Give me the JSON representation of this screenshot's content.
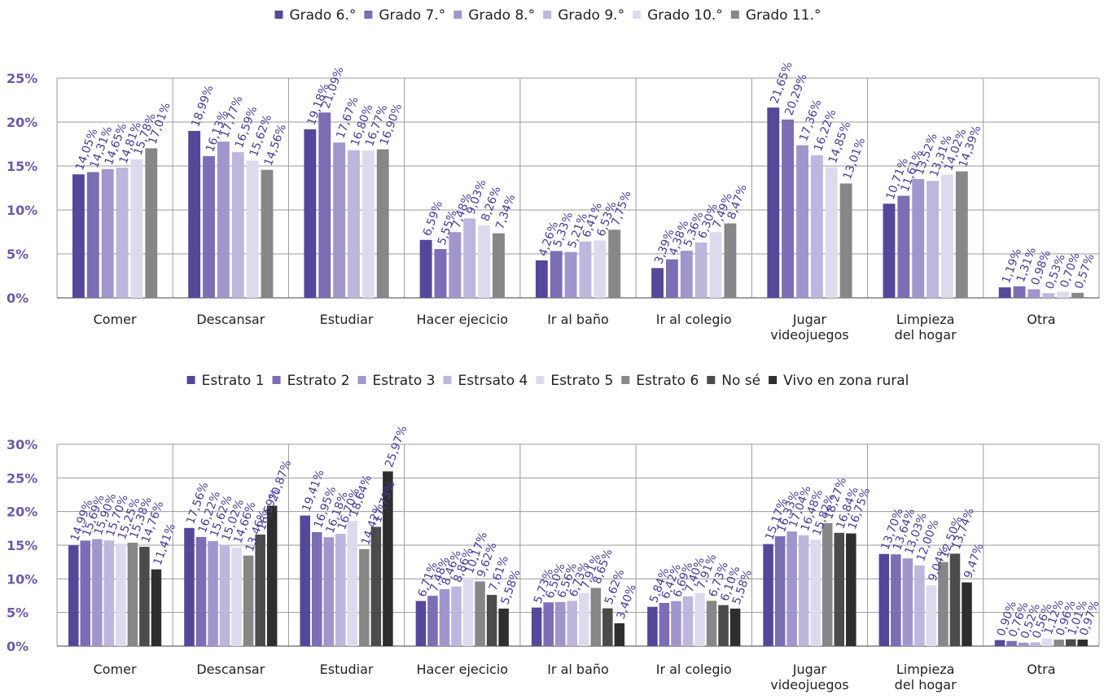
{
  "chart_data": [
    {
      "type": "bar",
      "categories": [
        [
          "Comer"
        ],
        [
          "Descansar"
        ],
        [
          "Estudiar"
        ],
        [
          "Hacer ejecicio"
        ],
        [
          "Ir al baño"
        ],
        [
          "Ir al colegio"
        ],
        [
          "Jugar",
          "videojuegos"
        ],
        [
          "Limpieza",
          "del hogar"
        ],
        [
          "Otra"
        ]
      ],
      "ylim": [
        0,
        25
      ],
      "yticks": [
        0,
        5,
        10,
        15,
        20,
        25
      ],
      "ytick_labels": [
        "0%",
        "5%",
        "10%",
        "15%",
        "20%",
        "25%"
      ],
      "grid": true,
      "legend_position": "top",
      "series": [
        {
          "name": "Grado 6.°",
          "color": "#54489a",
          "values": [
            14.05,
            18.99,
            19.18,
            6.59,
            4.26,
            3.39,
            21.65,
            10.71,
            1.19
          ],
          "labels": [
            "14,05%",
            "18,99%",
            "19,18%",
            "6,59%",
            "4,26%",
            "3,39%",
            "21,65%",
            "10,71%",
            "1,19%"
          ]
        },
        {
          "name": "Grado 7.°",
          "color": "#7c6db4",
          "values": [
            14.31,
            16.13,
            21.09,
            5.55,
            5.33,
            4.38,
            20.29,
            11.61,
            1.31
          ],
          "labels": [
            "14,31%",
            "16,13%",
            "21,09%",
            "5,55%",
            "5,33%",
            "4,38%",
            "20,29%",
            "11,61%",
            "1,31%"
          ]
        },
        {
          "name": "Grado 8.°",
          "color": "#a096cc",
          "values": [
            14.65,
            17.77,
            17.67,
            7.48,
            5.21,
            5.36,
            17.36,
            13.52,
            0.98
          ],
          "labels": [
            "14,65%",
            "17,77%",
            "17,67%",
            "7,48%",
            "5,21%",
            "5,36%",
            "17,36%",
            "13,52%",
            "0,98%"
          ]
        },
        {
          "name": "Grado 9.°",
          "color": "#bdb6dd",
          "values": [
            14.81,
            16.59,
            16.8,
            9.03,
            6.41,
            6.3,
            16.22,
            13.31,
            0.53
          ],
          "labels": [
            "14,81%",
            "16,59%",
            "16,80%",
            "9,03%",
            "6,41%",
            "6,30%",
            "16,22%",
            "13,31%",
            "0,53%"
          ]
        },
        {
          "name": "Grado 10.°",
          "color": "#dedaee",
          "values": [
            15.78,
            15.62,
            16.77,
            8.26,
            6.53,
            7.49,
            14.85,
            14.02,
            0.7
          ],
          "labels": [
            "15,78%",
            "15,62%",
            "16,77%",
            "8,26%",
            "6,53%",
            "7,49%",
            "14,85%",
            "14,02%",
            "0,70%"
          ]
        },
        {
          "name": "Grado 11.°",
          "color": "#878787",
          "values": [
            17.01,
            14.56,
            16.9,
            7.34,
            7.75,
            8.47,
            13.01,
            14.39,
            0.57
          ],
          "labels": [
            "17,01%",
            "14,56%",
            "16,90%",
            "7,34%",
            "7,75%",
            "8,47%",
            "13,01%",
            "14,39%",
            "0,57%"
          ]
        }
      ]
    },
    {
      "type": "bar",
      "categories": [
        [
          "Comer"
        ],
        [
          "Descansar"
        ],
        [
          "Estudiar"
        ],
        [
          "Hacer ejecicio"
        ],
        [
          "Ir al baño"
        ],
        [
          "Ir al colegio"
        ],
        [
          "Jugar",
          "videojuegos"
        ],
        [
          "Limpieza",
          "del hogar"
        ],
        [
          "Otra"
        ]
      ],
      "ylim": [
        0,
        30
      ],
      "yticks": [
        0,
        5,
        10,
        15,
        20,
        25,
        30
      ],
      "ytick_labels": [
        "0%",
        "5%",
        "10%",
        "15%",
        "20%",
        "25%",
        "30%"
      ],
      "grid": true,
      "legend_position": "top",
      "series": [
        {
          "name": "Estrato 1",
          "color": "#54489a",
          "values": [
            14.99,
            17.56,
            19.41,
            6.71,
            5.73,
            5.84,
            15.17,
            13.7,
            0.9
          ],
          "labels": [
            "14,99%",
            "17,56%",
            "19,41%",
            "6,71%",
            "5,73%",
            "5,84%",
            "15,17%",
            "13,70%",
            "0,90%"
          ]
        },
        {
          "name": "Estrato 2",
          "color": "#7c6db4",
          "values": [
            15.69,
            16.22,
            16.95,
            7.48,
            6.5,
            6.42,
            16.33,
            13.64,
            0.76
          ],
          "labels": [
            "15,69%",
            "16,22%",
            "16,95%",
            "7,48%",
            "6,50%",
            "6,42%",
            "16,33%",
            "13,64%",
            "0,76%"
          ]
        },
        {
          "name": "Estrato 3",
          "color": "#a096cc",
          "values": [
            15.9,
            15.62,
            16.18,
            8.46,
            6.56,
            6.69,
            17.04,
            13.03,
            0.52
          ],
          "labels": [
            "15,90%",
            "15,62%",
            "16,18%",
            "8,46%",
            "6,56%",
            "6,69%",
            "17,04%",
            "13,03%",
            "0,52%"
          ]
        },
        {
          "name": "Estrsato 4",
          "color": "#bdb6dd",
          "values": [
            15.7,
            15.02,
            16.7,
            8.86,
            6.73,
            7.4,
            16.48,
            12.0,
            0.56
          ],
          "labels": [
            "15,70%",
            "15,02%",
            "16,70%",
            "8,86%",
            "6,73%",
            "7,40%",
            "16,48%",
            "12,00%",
            "0,56%"
          ]
        },
        {
          "name": "Estrato 5",
          "color": "#dedaee",
          "values": [
            15.25,
            14.66,
            18.64,
            10.17,
            7.91,
            7.91,
            15.82,
            9.04,
            1.12
          ],
          "labels": [
            "15,25%",
            "14,66%",
            "18,64%",
            "10,17%",
            "7,91%",
            "7,91%",
            "15,82%",
            "9,04%",
            "1,12%"
          ]
        },
        {
          "name": "Estrato 6",
          "color": "#878787",
          "values": [
            15.38,
            13.46,
            14.42,
            9.62,
            8.65,
            6.73,
            18.27,
            12.5,
            0.96
          ],
          "labels": [
            "15,38%",
            "13,46%",
            "14,42%",
            "9,62%",
            "8,65%",
            "6,73%",
            "18,27%",
            "12,50%",
            "0,96%"
          ]
        },
        {
          "name": "No sé",
          "color": "#4b4b4b",
          "values": [
            14.76,
            16.59,
            17.73,
            7.61,
            5.62,
            6.1,
            16.84,
            13.74,
            1.01
          ],
          "labels": [
            "14,76%",
            "16,59%",
            "17,73%",
            "7,61%",
            "5,62%",
            "6,10%",
            "16,84%",
            "13,74%",
            "1,01%"
          ]
        },
        {
          "name": "Vivo en zona rural",
          "color": "#2e2e2e",
          "values": [
            11.41,
            20.87,
            25.97,
            5.58,
            3.4,
            5.58,
            16.75,
            9.47,
            0.97
          ],
          "labels": [
            "11,41%",
            "20,87%",
            "25,97%",
            "5,58%",
            "3,40%",
            "5,58%",
            "16,75%",
            "9,47%",
            "0,97%"
          ]
        }
      ]
    }
  ]
}
